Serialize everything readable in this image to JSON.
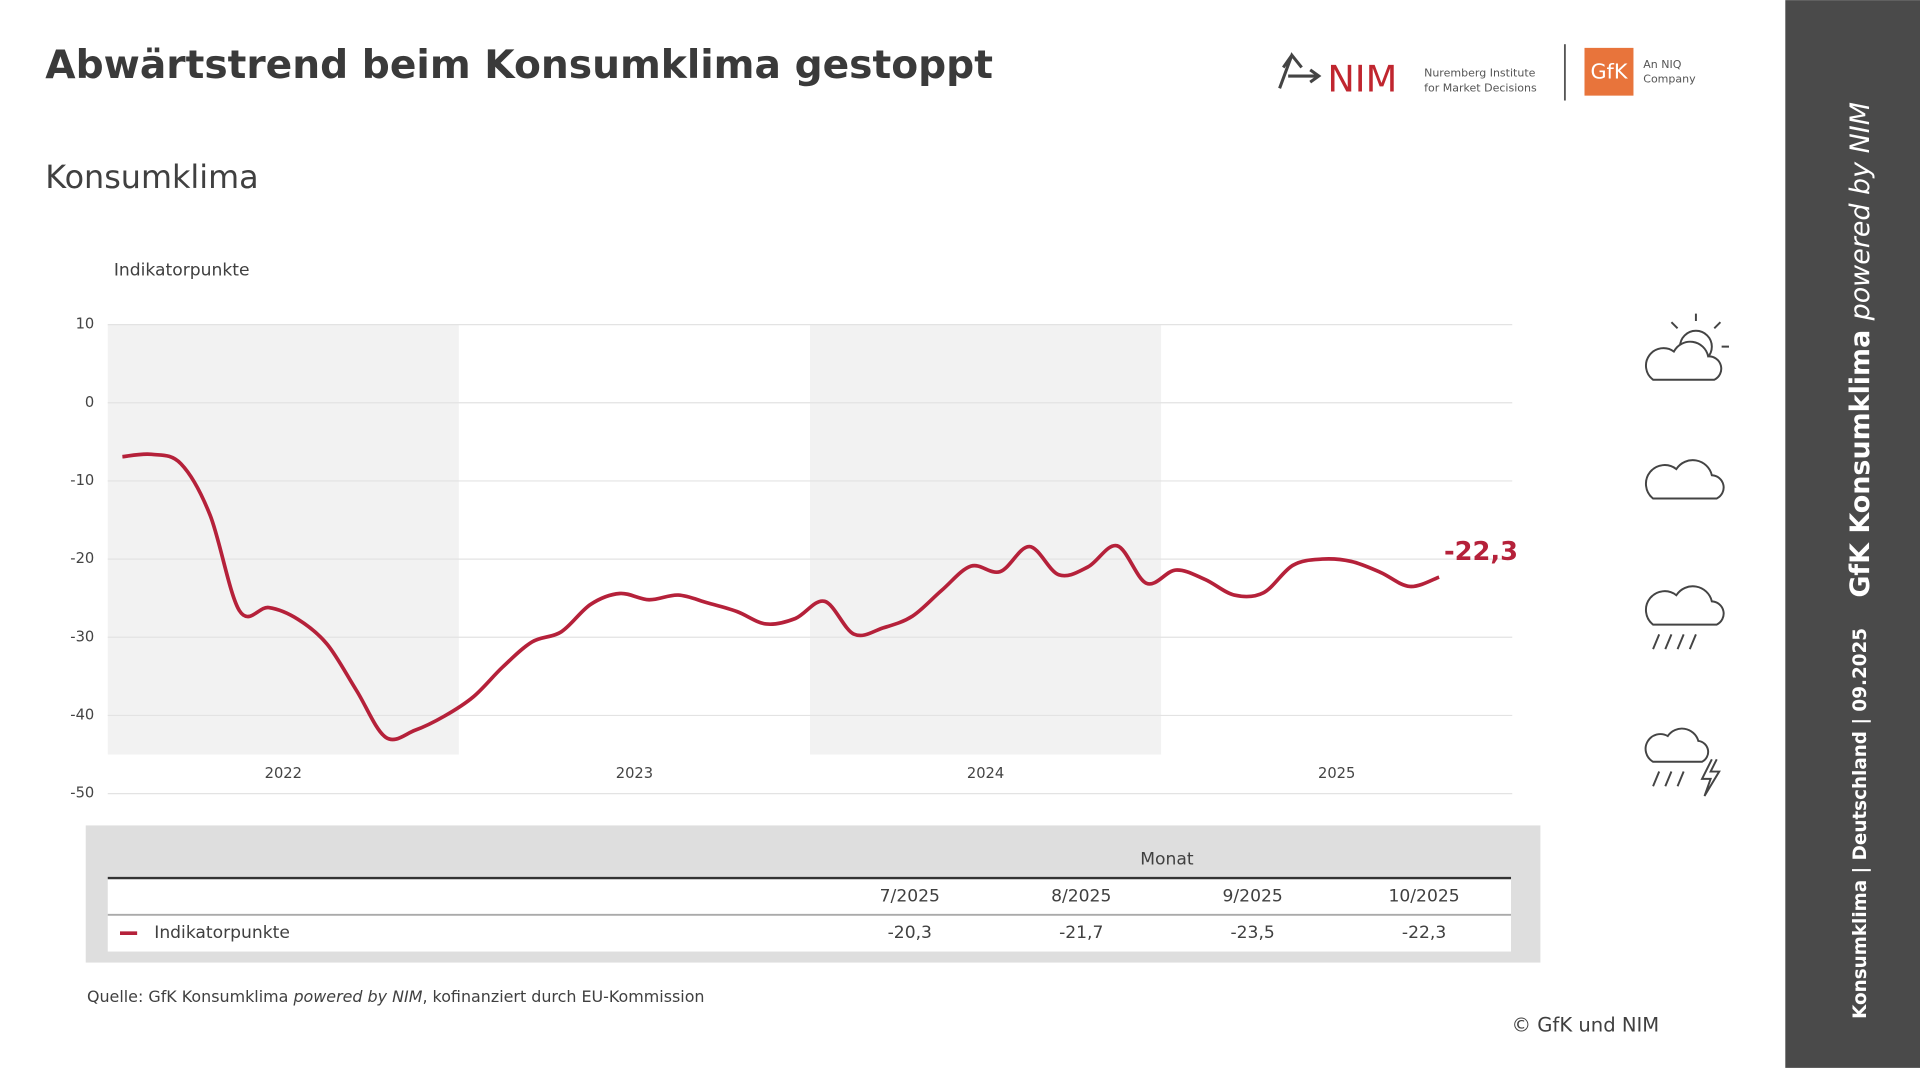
{
  "header": {
    "title": "Abwärtstrend beim Konsumklima gestoppt",
    "nim_logo": "NIM",
    "nim_line1": "Nuremberg Institute",
    "nim_line2": "for Market Decisions",
    "gfk_logo": "GfK",
    "niq_line1": "An NIQ",
    "niq_line2": "Company"
  },
  "chart_data": {
    "type": "line",
    "title": "Konsumklima",
    "y_label": "Indikatorpunkte",
    "x_labels": [
      "2022",
      "2023",
      "2024",
      "2025"
    ],
    "series": [
      {
        "name": "Indikatorpunkte",
        "color": "#b5213a",
        "values": [
          -6.9,
          -6.6,
          -7.8,
          -14.4,
          -26.6,
          -26.2,
          -27.7,
          -30.9,
          -36.8,
          -42.8,
          -41.9,
          -40.1,
          -37.6,
          -33.8,
          -30.6,
          -29.3,
          -25.8,
          -24.4,
          -25.2,
          -24.6,
          -25.6,
          -26.7,
          -28.3,
          -27.6,
          -25.4,
          -29.6,
          -28.8,
          -27.3,
          -24.0,
          -20.9,
          -21.6,
          -18.4,
          -22.0,
          -21.0,
          -18.3,
          -23.1,
          -21.4,
          -22.6,
          -24.6,
          -24.3,
          -20.8,
          -20.0,
          -20.3,
          -21.7,
          -23.5,
          -22.3
        ],
        "end_label": "-22,3"
      }
    ],
    "ylim": [
      -50,
      10
    ],
    "yticks": [
      10,
      0,
      -10,
      -20,
      -30,
      -40,
      -50
    ],
    "grid": true
  },
  "table": {
    "group_header": "Monat",
    "columns": [
      "7/2025",
      "8/2025",
      "9/2025",
      "10/2025"
    ],
    "row_label": "Indikatorpunkte",
    "row": [
      "-20,3",
      "-21,7",
      "-23,5",
      "-22,3"
    ]
  },
  "footer": {
    "source_prefix": "Quelle: GfK Konsumklima ",
    "source_italic": "powered by NIM",
    "source_suffix": ", kofinanziert durch EU-Kommission",
    "copyright": "© GfK und NIM"
  },
  "sidebar": {
    "title_bold": "GfK Konsumklima ",
    "title_italic": "powered by NIM",
    "subtitle": "Konsumklima | Deutschland | 09.2025"
  }
}
